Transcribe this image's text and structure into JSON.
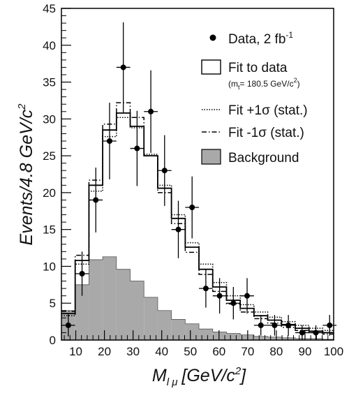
{
  "chart_data": {
    "type": "histogram",
    "xlabel": {
      "main": "M",
      "sub": "l μ",
      "unit": "[GeV/c",
      "unit_sup": "2",
      "unit_close": "]"
    },
    "ylabel": {
      "main": "Events/4.8 GeV/c",
      "sup": "2"
    },
    "xlim": [
      5,
      100
    ],
    "ylim": [
      0,
      45
    ],
    "bin_edges": [
      5.0,
      9.8,
      14.6,
      19.4,
      24.2,
      29.0,
      33.8,
      38.6,
      43.4,
      48.2,
      53.0,
      57.8,
      62.6,
      67.4,
      72.2,
      77.0,
      81.8,
      86.6,
      91.4,
      96.2,
      100.0
    ],
    "x_ticks": [
      10,
      20,
      30,
      40,
      50,
      60,
      70,
      80,
      90,
      100
    ],
    "y_ticks": [
      0,
      5,
      10,
      15,
      20,
      25,
      30,
      35,
      40,
      45
    ],
    "series": [
      {
        "name": "Background",
        "kind": "filled-step",
        "color": "#a9a9a9",
        "values": [
          4.0,
          7.5,
          10.9,
          11.3,
          9.6,
          8.0,
          5.8,
          4.0,
          2.8,
          2.2,
          1.5,
          1.1,
          0.9,
          0.7,
          0.5,
          0.4,
          0.3,
          0.2,
          0.2,
          0.1
        ]
      },
      {
        "name": "Fit to data",
        "name_sub": "(m",
        "name_sub_t": "t",
        "name_sub_rest": "= 180.5 GeV/c",
        "name_sub_sup": "2",
        "name_sub_close": ")",
        "kind": "solid-step",
        "color": "#000000",
        "values": [
          3.6,
          10.8,
          21.0,
          28.5,
          30.8,
          29.0,
          25.0,
          20.6,
          16.5,
          12.6,
          9.6,
          7.2,
          5.4,
          4.3,
          3.3,
          2.7,
          2.1,
          1.6,
          1.2,
          1.0
        ]
      },
      {
        "name": "Fit +1",
        "name_tail": " (stat.)",
        "kind": "dotted-step",
        "color": "#000000",
        "values": [
          3.3,
          10.3,
          20.2,
          27.6,
          30.2,
          28.8,
          25.2,
          21.0,
          17.0,
          13.2,
          10.3,
          7.8,
          6.0,
          4.8,
          3.8,
          3.1,
          2.5,
          2.0,
          1.6,
          1.3
        ]
      },
      {
        "name": "Fit -1",
        "name_tail": " (stat.)",
        "kind": "dashdot-step",
        "color": "#000000",
        "values": [
          3.9,
          11.5,
          21.7,
          29.3,
          32.2,
          30.2,
          25.0,
          20.0,
          15.8,
          11.9,
          8.9,
          6.6,
          4.9,
          3.8,
          2.9,
          2.3,
          1.7,
          1.3,
          1.0,
          0.8
        ]
      },
      {
        "name": "Data, 2 fb",
        "name_sup": "-1",
        "kind": "points-with-errors",
        "color": "#000000",
        "points": [
          {
            "x": 7.4,
            "y": 2,
            "err": 1.5
          },
          {
            "x": 12.2,
            "y": 9,
            "err": 3.0
          },
          {
            "x": 17.0,
            "y": 19,
            "err": 4.4
          },
          {
            "x": 21.8,
            "y": 27,
            "err": 5.2
          },
          {
            "x": 26.6,
            "y": 37,
            "err": 6.1
          },
          {
            "x": 31.4,
            "y": 26,
            "err": 5.1
          },
          {
            "x": 36.2,
            "y": 31,
            "err": 5.6
          },
          {
            "x": 41.0,
            "y": 23,
            "err": 4.8
          },
          {
            "x": 45.8,
            "y": 15,
            "err": 3.9
          },
          {
            "x": 50.6,
            "y": 18,
            "err": 4.2
          },
          {
            "x": 55.4,
            "y": 7,
            "err": 2.6
          },
          {
            "x": 60.2,
            "y": 6,
            "err": 2.4
          },
          {
            "x": 65.0,
            "y": 5,
            "err": 2.2
          },
          {
            "x": 69.8,
            "y": 6,
            "err": 2.4
          },
          {
            "x": 74.6,
            "y": 2,
            "err": 1.4
          },
          {
            "x": 79.4,
            "y": 2,
            "err": 1.4
          },
          {
            "x": 84.2,
            "y": 2,
            "err": 1.4
          },
          {
            "x": 89.0,
            "y": 1,
            "err": 1.0
          },
          {
            "x": 93.8,
            "y": 1,
            "err": 1.0
          },
          {
            "x": 98.6,
            "y": 2,
            "err": 1.4
          }
        ]
      }
    ],
    "sigma_symbol": "σ",
    "legend": {
      "placement": "top-right"
    }
  }
}
